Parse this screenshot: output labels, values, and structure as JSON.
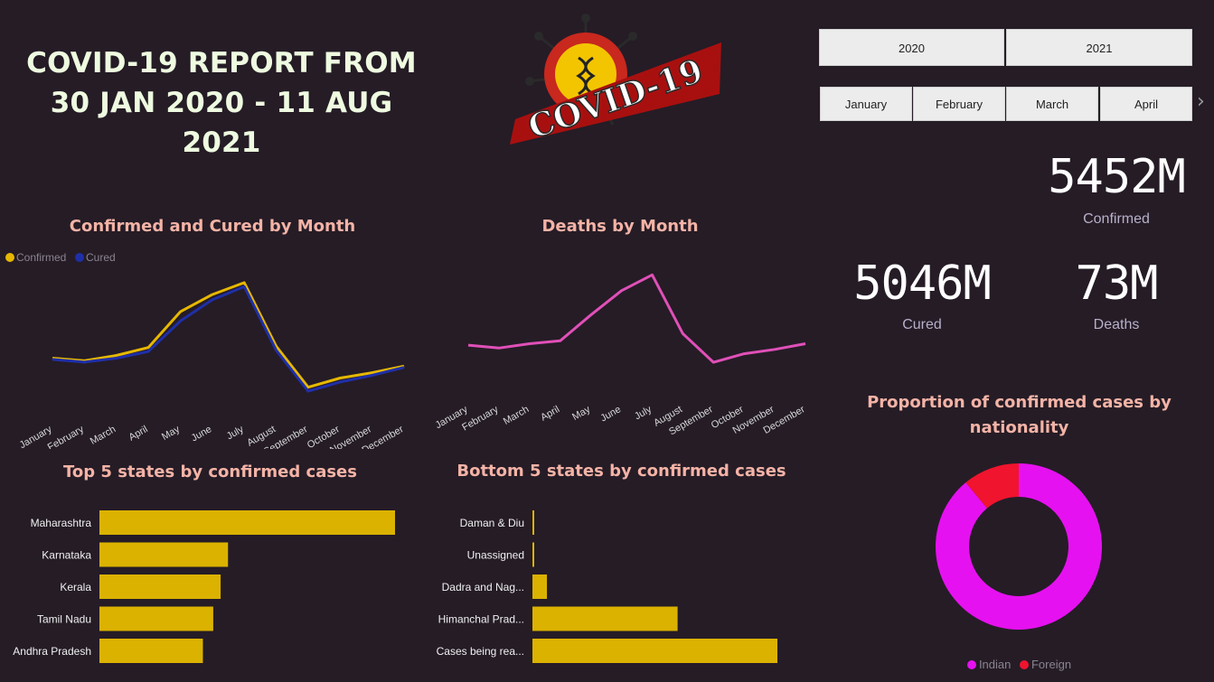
{
  "header": {
    "title_line1": "COVID-19 REPORT FROM",
    "title_line2": "30 JAN 2020 - 11 AUG 2021",
    "logo_text": "COVID-19"
  },
  "slicers": {
    "years": [
      "2020",
      "2021"
    ],
    "months": [
      "January",
      "February",
      "March",
      "April"
    ],
    "next_arrow": "›"
  },
  "kpis": {
    "confirmed": {
      "value": "5452M",
      "label": "Confirmed"
    },
    "cured": {
      "value": "5046M",
      "label": "Cured"
    },
    "deaths": {
      "value": "73M",
      "label": "Deaths"
    }
  },
  "colors": {
    "confirmed": "#e6b800",
    "cured": "#1f2fa8",
    "deaths_line": "#e050b8",
    "bar": "#dbb200",
    "indian": "#e611f0",
    "foreign": "#f0142e"
  },
  "chart_data": [
    {
      "type": "line",
      "title": "Confirmed and Cured by Month",
      "categories": [
        "January",
        "February",
        "March",
        "April",
        "May",
        "June",
        "July",
        "August",
        "September",
        "October",
        "November",
        "December"
      ],
      "series": [
        {
          "name": "Confirmed",
          "values": [
            9,
            7,
            11,
            17,
            44,
            57,
            66,
            18,
            -13,
            -6,
            -2,
            3
          ]
        },
        {
          "name": "Cured",
          "values": [
            8,
            6,
            9,
            14,
            37,
            53,
            63,
            15,
            -16,
            -9,
            -4,
            2
          ]
        }
      ],
      "ylim": [
        -20,
        70
      ],
      "legend": "top-left"
    },
    {
      "type": "line",
      "title": "Deaths by Month",
      "categories": [
        "January",
        "February",
        "March",
        "April",
        "May",
        "June",
        "July",
        "August",
        "September",
        "October",
        "November",
        "December"
      ],
      "series": [
        {
          "name": "Deaths",
          "values": [
            12,
            10,
            13,
            15,
            33,
            50,
            61,
            20,
            0,
            6,
            9,
            13
          ]
        }
      ],
      "ylim": [
        -10,
        70
      ]
    },
    {
      "type": "bar",
      "orientation": "horizontal",
      "title": "Top 5 states by confirmed cases",
      "categories": [
        "Maharashtra",
        "Karnataka",
        "Kerala",
        "Tamil Nadu",
        "Andhra Pradesh"
      ],
      "values": [
        1000,
        435,
        410,
        385,
        350
      ],
      "xlim": [
        0,
        1000
      ]
    },
    {
      "type": "bar",
      "orientation": "horizontal",
      "title": "Bottom 5 states by confirmed cases",
      "categories": [
        "Daman & Diu",
        "Unassigned",
        "Dadra and Nag...",
        "Himanchal Prad...",
        "Cases being rea..."
      ],
      "values": [
        2,
        2,
        16,
        160,
        270
      ],
      "xlim": [
        0,
        270
      ]
    },
    {
      "type": "pie",
      "donut": true,
      "title": "Proportion of confirmed cases by nationality",
      "categories": [
        "Indian",
        "Foreign"
      ],
      "values": [
        89,
        11
      ],
      "legend": "bottom"
    }
  ]
}
